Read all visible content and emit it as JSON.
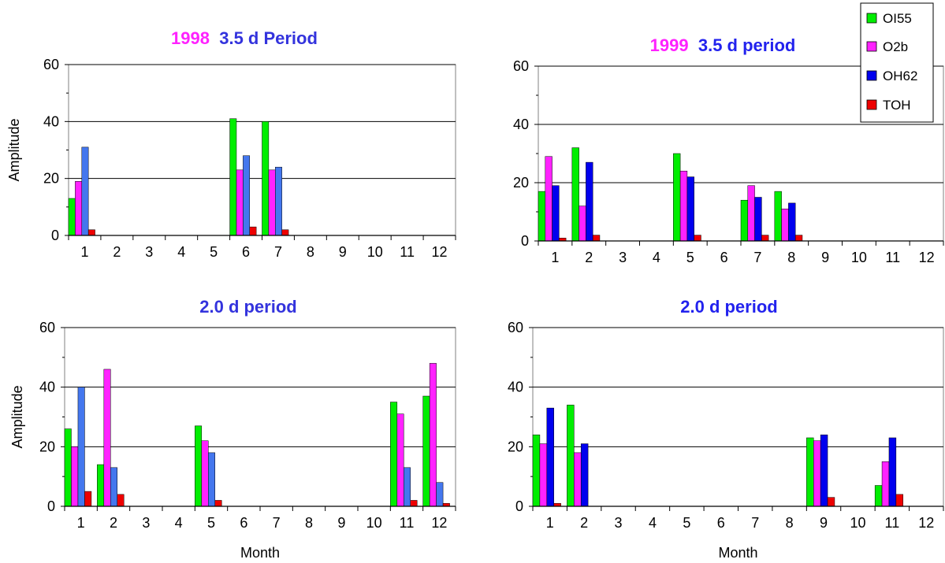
{
  "legend": {
    "items": [
      {
        "label": "OI55",
        "color": "#00ee00"
      },
      {
        "label": "O2b",
        "color": "#ff22ff"
      },
      {
        "label": "OH62",
        "color": "#0000ee"
      },
      {
        "label": "TOH",
        "color": "#ee0000"
      }
    ]
  },
  "chart_data": [
    {
      "type": "bar",
      "title_year": "1998",
      "title_year_color": "#ff22ff",
      "title_period": "3.5 d Period",
      "title_period_color": "#3333dd",
      "ylabel": "Amplitude",
      "xlabel": "",
      "ylim": [
        0,
        60
      ],
      "yticks": [
        "0",
        "20",
        "40",
        "60"
      ],
      "categories": [
        "1",
        "2",
        "3",
        "4",
        "5",
        "6",
        "7",
        "8",
        "9",
        "10",
        "11",
        "12"
      ],
      "series": [
        {
          "name": "OI55",
          "color": "#00ee00",
          "values": [
            13,
            0,
            0,
            0,
            0,
            41,
            40,
            0,
            0,
            0,
            0,
            0
          ]
        },
        {
          "name": "O2b",
          "color": "#ff22ff",
          "values": [
            19,
            0,
            0,
            0,
            0,
            23,
            23,
            0,
            0,
            0,
            0,
            0
          ]
        },
        {
          "name": "OH62",
          "color": "#4477ee",
          "values": [
            31,
            0,
            0,
            0,
            0,
            28,
            24,
            0,
            0,
            0,
            0,
            0
          ]
        },
        {
          "name": "TOH",
          "color": "#ee0000",
          "values": [
            2,
            0,
            0,
            0,
            0,
            3,
            2,
            0,
            0,
            0,
            0,
            0
          ]
        }
      ]
    },
    {
      "type": "bar",
      "title_year": "1999",
      "title_year_color": "#ff22ff",
      "title_period": "3.5 d period",
      "title_period_color": "#2222ee",
      "ylabel": "",
      "xlabel": "",
      "ylim": [
        0,
        60
      ],
      "yticks": [
        "0",
        "20",
        "40",
        "60"
      ],
      "categories": [
        "1",
        "2",
        "3",
        "4",
        "5",
        "6",
        "7",
        "8",
        "9",
        "10",
        "11",
        "12"
      ],
      "series": [
        {
          "name": "OI55",
          "color": "#00ee00",
          "values": [
            17,
            32,
            0,
            0,
            30,
            0,
            14,
            17,
            0,
            0,
            0,
            0
          ]
        },
        {
          "name": "O2b",
          "color": "#ff22ff",
          "values": [
            29,
            12,
            0,
            0,
            24,
            0,
            19,
            11,
            0,
            0,
            0,
            0
          ]
        },
        {
          "name": "OH62",
          "color": "#0000ee",
          "values": [
            19,
            27,
            0,
            0,
            22,
            0,
            15,
            13,
            0,
            0,
            0,
            0
          ]
        },
        {
          "name": "TOH",
          "color": "#ee0000",
          "values": [
            1,
            2,
            0,
            0,
            2,
            0,
            2,
            2,
            0,
            0,
            0,
            0
          ]
        }
      ]
    },
    {
      "type": "bar",
      "title_year": "",
      "title_year_color": "#ff22ff",
      "title_period": "2.0 d period",
      "title_period_color": "#3333dd",
      "ylabel": "Amplitude",
      "xlabel": "Month",
      "ylim": [
        0,
        60
      ],
      "yticks": [
        "0",
        "20",
        "40",
        "60"
      ],
      "categories": [
        "1",
        "2",
        "3",
        "4",
        "5",
        "6",
        "7",
        "8",
        "9",
        "10",
        "11",
        "12"
      ],
      "series": [
        {
          "name": "OI55",
          "color": "#00ee00",
          "values": [
            26,
            14,
            0,
            0,
            27,
            0,
            0,
            0,
            0,
            0,
            35,
            37
          ]
        },
        {
          "name": "O2b",
          "color": "#ff22ff",
          "values": [
            20,
            46,
            0,
            0,
            22,
            0,
            0,
            0,
            0,
            0,
            31,
            48
          ]
        },
        {
          "name": "OH62",
          "color": "#4477ee",
          "values": [
            40,
            13,
            0,
            0,
            18,
            0,
            0,
            0,
            0,
            0,
            13,
            8
          ]
        },
        {
          "name": "TOH",
          "color": "#ee0000",
          "values": [
            5,
            4,
            0,
            0,
            2,
            0,
            0,
            0,
            0,
            0,
            2,
            1
          ]
        }
      ]
    },
    {
      "type": "bar",
      "title_year": "",
      "title_year_color": "#ff22ff",
      "title_period": "2.0 d period",
      "title_period_color": "#2222ee",
      "ylabel": "",
      "xlabel": "Month",
      "ylim": [
        0,
        60
      ],
      "yticks": [
        "0",
        "20",
        "40",
        "60"
      ],
      "categories": [
        "1",
        "2",
        "3",
        "4",
        "5",
        "6",
        "7",
        "8",
        "9",
        "10",
        "11",
        "12"
      ],
      "series": [
        {
          "name": "OI55",
          "color": "#00ee00",
          "values": [
            24,
            34,
            0,
            0,
            0,
            0,
            0,
            0,
            23,
            0,
            7,
            0
          ]
        },
        {
          "name": "O2b",
          "color": "#ff22ff",
          "values": [
            21,
            18,
            0,
            0,
            0,
            0,
            0,
            0,
            22,
            0,
            15,
            0
          ]
        },
        {
          "name": "OH62",
          "color": "#0000ee",
          "values": [
            33,
            21,
            0,
            0,
            0,
            0,
            0,
            0,
            24,
            0,
            23,
            0
          ]
        },
        {
          "name": "TOH",
          "color": "#ee0000",
          "values": [
            1,
            0,
            0,
            0,
            0,
            0,
            0,
            0,
            3,
            0,
            4,
            0
          ]
        }
      ]
    }
  ]
}
